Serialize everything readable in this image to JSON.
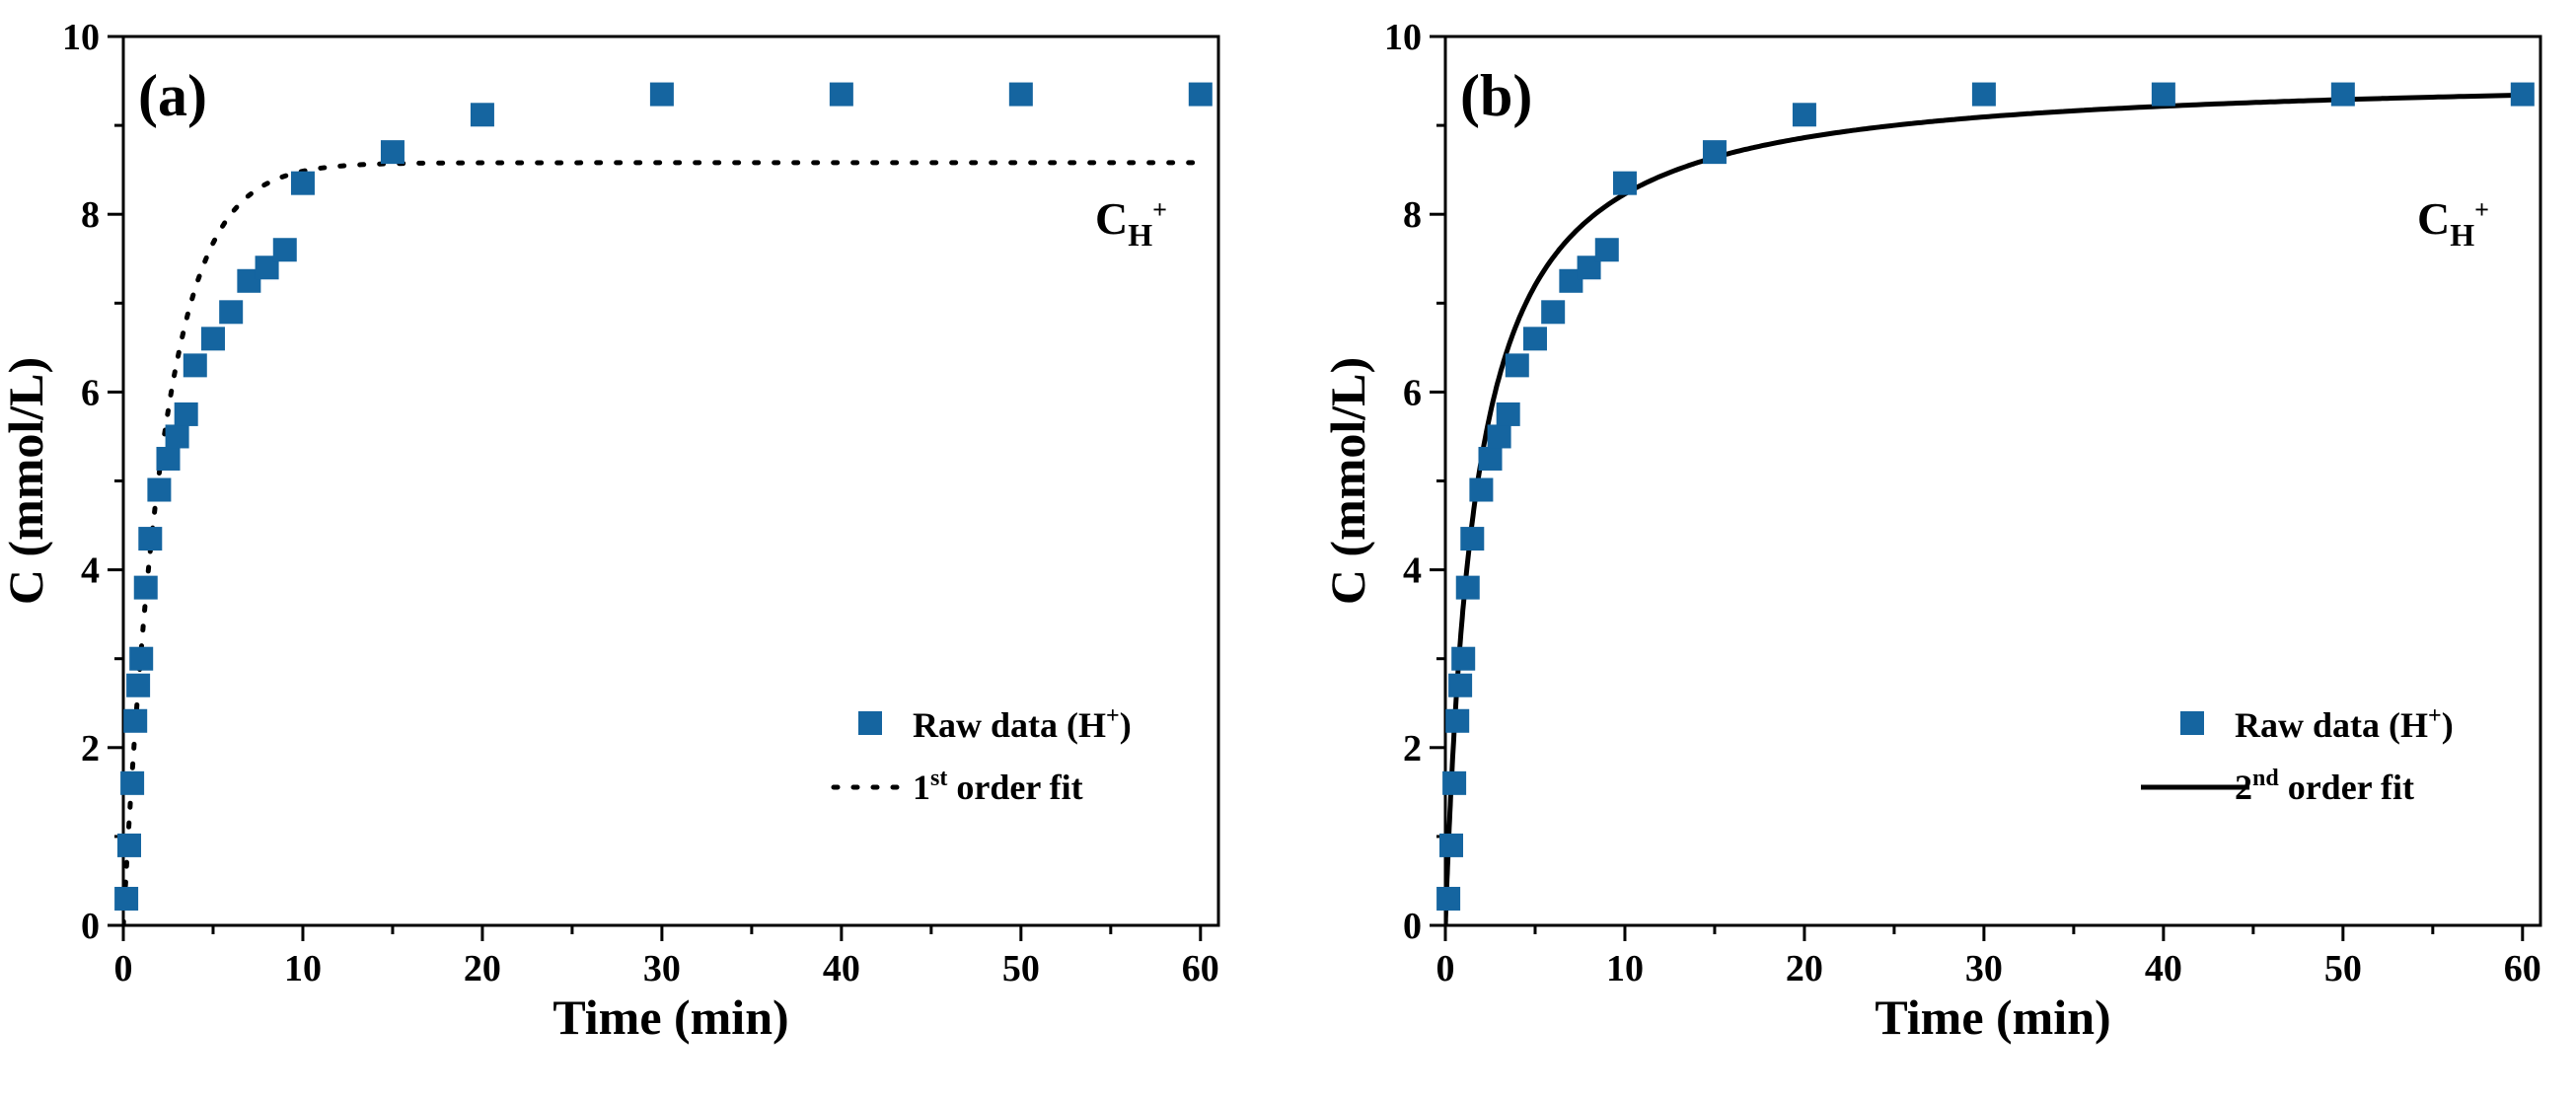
{
  "colors": {
    "marker": "#1565a0",
    "fit": "#000000",
    "axis": "#000000",
    "species_label": "#1565a0"
  },
  "chart_data": [
    {
      "panel_label": "(a)",
      "type": "scatter",
      "xlabel": "Time (min)",
      "ylabel": "C (mmol/L)",
      "xlim": [
        0,
        61
      ],
      "ylim": [
        0,
        10
      ],
      "xticks": [
        "0",
        "10",
        "20",
        "30",
        "40",
        "50",
        "60"
      ],
      "yticks": [
        "0",
        "2",
        "4",
        "6",
        "8",
        "10"
      ],
      "series": [
        {
          "name": "Raw data (H+)",
          "kind": "markers",
          "x": [
            0.17,
            0.33,
            0.5,
            0.67,
            0.83,
            1,
            1.25,
            1.5,
            2,
            2.5,
            3,
            3.5,
            4,
            5,
            6,
            7,
            8,
            9,
            10,
            15,
            20,
            30,
            40,
            50,
            60
          ],
          "y": [
            0.3,
            0.9,
            1.6,
            2.3,
            2.7,
            3.0,
            3.8,
            4.35,
            4.9,
            5.25,
            5.5,
            5.75,
            6.3,
            6.6,
            6.9,
            7.25,
            7.4,
            7.6,
            8.35,
            8.7,
            9.12,
            9.35,
            9.35,
            9.35,
            9.35
          ]
        },
        {
          "name": "1st order fit",
          "kind": "dotted-line",
          "model": "first-order",
          "params": {
            "qe": 8.58,
            "k": 0.45
          },
          "x_range": [
            0,
            60
          ]
        }
      ],
      "legend": {
        "position": "center-right",
        "marker_label_main": "Raw data (H",
        "marker_label_sup": "+",
        "marker_label_end": ")",
        "fit_label_main": "1",
        "fit_label_sup": "st",
        "fit_label_end": " order fit"
      },
      "species_label": {
        "main": "C",
        "sub": "H",
        "sup": "+"
      }
    },
    {
      "panel_label": "(b)",
      "type": "scatter",
      "xlabel": "Time (min)",
      "ylabel": "C (mmol/L)",
      "xlim": [
        0,
        61
      ],
      "ylim": [
        0,
        10
      ],
      "xticks": [
        "0",
        "10",
        "20",
        "30",
        "40",
        "50",
        "60"
      ],
      "yticks": [
        "0",
        "2",
        "4",
        "6",
        "8",
        "10"
      ],
      "series": [
        {
          "name": "Raw data (H+)",
          "kind": "markers",
          "x": [
            0.17,
            0.33,
            0.5,
            0.67,
            0.83,
            1,
            1.25,
            1.5,
            2,
            2.5,
            3,
            3.5,
            4,
            5,
            6,
            7,
            8,
            9,
            10,
            15,
            20,
            30,
            40,
            50,
            60
          ],
          "y": [
            0.3,
            0.9,
            1.6,
            2.3,
            2.7,
            3.0,
            3.8,
            4.35,
            4.9,
            5.25,
            5.5,
            5.75,
            6.3,
            6.6,
            6.9,
            7.25,
            7.4,
            7.6,
            8.35,
            8.7,
            9.12,
            9.35,
            9.35,
            9.35,
            9.35
          ]
        },
        {
          "name": "2nd order fit",
          "kind": "solid-line",
          "model": "second-order",
          "params": {
            "qe": 9.6,
            "k": 0.0625
          },
          "x_range": [
            0,
            60
          ]
        }
      ],
      "legend": {
        "position": "center-right",
        "marker_label_main": "Raw data (H",
        "marker_label_sup": "+",
        "marker_label_end": ")",
        "fit_label_main": "2",
        "fit_label_sup": "nd",
        "fit_label_end": " order fit"
      },
      "species_label": {
        "main": "C",
        "sub": "H",
        "sup": "+"
      }
    }
  ]
}
